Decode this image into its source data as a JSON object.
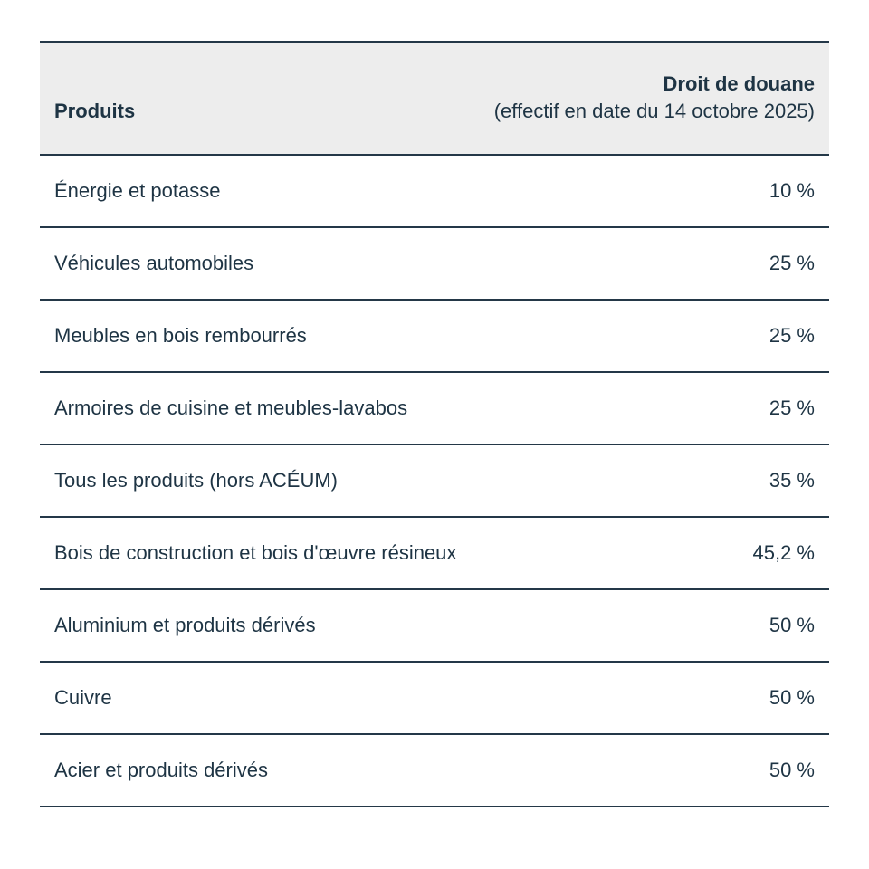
{
  "header": {
    "product_column_label": "Produits",
    "tariff_column_title": "Droit de douane",
    "tariff_column_subtitle": "(effectif en date du 14 octobre 2025)"
  },
  "chart_data": {
    "type": "table",
    "columns": [
      "Produits",
      "Droit de douane (effectif en date du 14 octobre 2025)"
    ],
    "rows": [
      {
        "product": "Énergie et potasse",
        "tariff": "10 %",
        "tariff_value": 10
      },
      {
        "product": "Véhicules automobiles",
        "tariff": "25 %",
        "tariff_value": 25
      },
      {
        "product": "Meubles en bois rembourrés",
        "tariff": "25 %",
        "tariff_value": 25
      },
      {
        "product": "Armoires de cuisine et meubles-lavabos",
        "tariff": "25 %",
        "tariff_value": 25
      },
      {
        "product": "Tous les produits (hors ACÉUM)",
        "tariff": "35 %",
        "tariff_value": 35
      },
      {
        "product": "Bois de construction et bois d'œuvre résineux",
        "tariff": "45,2 %",
        "tariff_value": 45.2
      },
      {
        "product": "Aluminium et produits dérivés",
        "tariff": "50 %",
        "tariff_value": 50
      },
      {
        "product": "Cuivre",
        "tariff": "50 %",
        "tariff_value": 50
      },
      {
        "product": "Acier et produits dérivés",
        "tariff": "50 %",
        "tariff_value": 50
      }
    ]
  },
  "colors": {
    "text": "#1e3444",
    "border": "#243848",
    "header_bg": "#ededed",
    "page_bg": "#ffffff"
  }
}
